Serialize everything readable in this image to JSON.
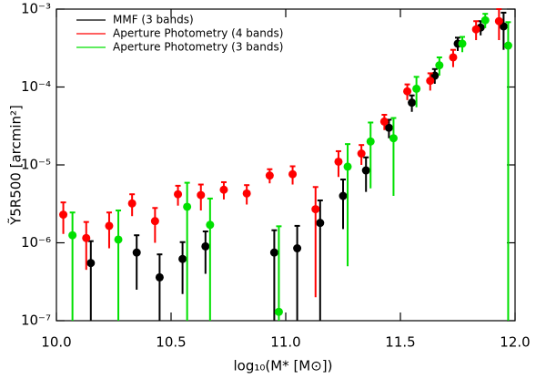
{
  "chart_data": {
    "type": "scatter",
    "x_label": "log₁₀(M* [M⊙])",
    "y_label": "Ỹ5R500 [arcmin²]",
    "log_y": true,
    "legend": "upper left",
    "xlim": [
      10,
      12
    ],
    "xticks": [
      {
        "value": 10,
        "label": "10.0"
      },
      10.5,
      {
        "value": 11,
        "label": "11.0"
      },
      11.5,
      {
        "value": 12,
        "label": "12.0"
      }
    ],
    "ylim": [
      1e-07,
      0.001
    ],
    "yticks": [
      {
        "value": 1e-07,
        "label": "10⁻⁷"
      },
      {
        "value": 1e-06,
        "label": "10⁻⁶"
      },
      {
        "value": 1e-05,
        "label": "10⁻⁵"
      },
      {
        "value": 0.0001,
        "label": "10⁻⁴"
      },
      {
        "value": 0.001,
        "label": "10⁻³"
      }
    ],
    "series": [
      {
        "name": "MMF (3 bands)",
        "color": "#000000",
        "x": [
          10.15,
          10.35,
          10.45,
          10.55,
          10.65,
          10.95,
          11.05,
          11.15,
          11.25,
          11.35,
          11.45,
          11.55,
          11.65,
          11.75,
          11.85,
          11.95
        ],
        "values": [
          5.5e-07,
          7.5e-07,
          3.6e-07,
          6.2e-07,
          9e-07,
          7.5e-07,
          8.5e-07,
          1.8e-06,
          4e-06,
          8.5e-06,
          3e-05,
          6.3e-05,
          0.00014,
          0.00036,
          0.00058,
          0.0006
        ],
        "errors": [
          5e-07,
          5e-07,
          3.5e-07,
          4e-07,
          5e-07,
          7e-07,
          8e-07,
          1.7e-06,
          2.5e-06,
          4e-06,
          8e-06,
          1.5e-05,
          3e-05,
          7e-05,
          0.00012,
          0.0003
        ]
      },
      {
        "name": "Aperture Photometry (4 bands)",
        "color": "#ff0000",
        "x": [
          10.03,
          10.13,
          10.23,
          10.33,
          10.43,
          10.53,
          10.63,
          10.73,
          10.83,
          10.93,
          11.03,
          11.13,
          11.23,
          11.33,
          11.43,
          11.53,
          11.63,
          11.73,
          11.83,
          11.93
        ],
        "values": [
          2.3e-06,
          1.15e-06,
          1.65e-06,
          3.2e-06,
          1.9e-06,
          4.2e-06,
          4.1e-06,
          4.8e-06,
          4.3e-06,
          7.3e-06,
          7.6e-06,
          2.7e-06,
          1.1e-05,
          1.4e-05,
          3.6e-05,
          8.8e-05,
          0.00012,
          0.00024,
          0.00055,
          0.0007
        ],
        "errors": [
          1e-06,
          7e-07,
          8e-07,
          1e-06,
          9e-07,
          1.2e-06,
          1.5e-06,
          1.2e-06,
          1.2e-06,
          1.5e-06,
          2e-06,
          2.5e-06,
          4e-06,
          4e-06,
          8e-06,
          2e-05,
          3e-05,
          6e-05,
          0.00015,
          0.0003
        ]
      },
      {
        "name": "Aperture Photometry (3 bands)",
        "color": "#00e000",
        "x": [
          10.07,
          10.27,
          10.57,
          10.67,
          10.97,
          11.27,
          11.37,
          11.47,
          11.57,
          11.67,
          11.77,
          11.87,
          11.97
        ],
        "values": [
          1.25e-06,
          1.1e-06,
          2.9e-06,
          1.7e-06,
          1.3e-07,
          9.5e-06,
          2e-05,
          2.2e-05,
          9.5e-05,
          0.00019,
          0.00036,
          0.00072,
          0.00034
        ],
        "errors": [
          1.2e-06,
          1.5e-06,
          3e-06,
          2e-06,
          1.5e-06,
          9e-06,
          1.5e-05,
          1.8e-05,
          4e-05,
          5e-05,
          8e-05,
          0.00015,
          0.00034
        ]
      }
    ]
  }
}
